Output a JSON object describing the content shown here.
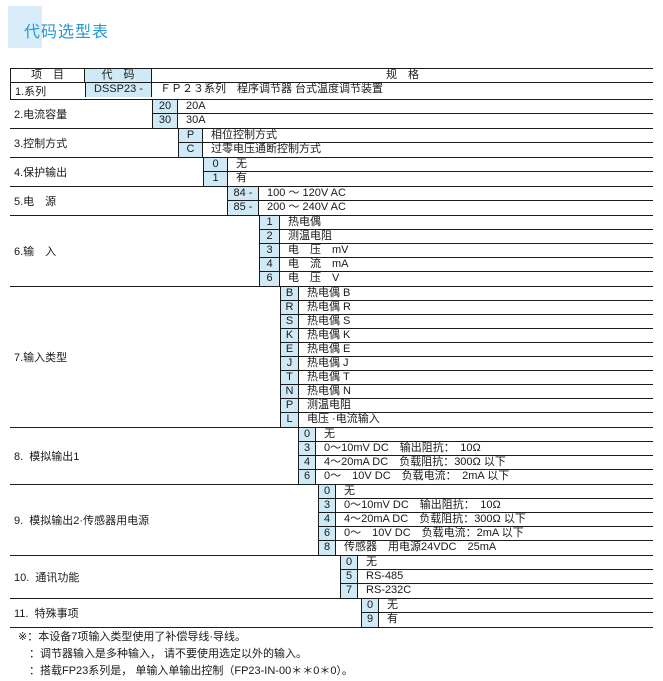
{
  "page_title": "代码选型表",
  "colors": {
    "accent_blue": "#2299d4",
    "title_highlight_bg": "#d8edf9",
    "code_cell_bg": "#cfe9f6",
    "border": "#1a1a1a"
  },
  "table": {
    "header": {
      "item": "项　目",
      "code": "代　码",
      "spec": "规　格"
    },
    "groups": [
      {
        "item": "1.系列",
        "options": [
          {
            "code": "DSSP23 -",
            "spec": "ＦＰ２３系列　程序调节器 台式温度调节装置"
          }
        ]
      },
      {
        "item": "2.电流容量",
        "options": [
          {
            "code": "20",
            "spec": "20A"
          },
          {
            "code": "30",
            "spec": "30A"
          }
        ]
      },
      {
        "item": "3.控制方式",
        "options": [
          {
            "code": "P",
            "spec": "相位控制方式"
          },
          {
            "code": "C",
            "spec": "过零电压通断控制方式"
          }
        ]
      },
      {
        "item": "4.保护输出",
        "options": [
          {
            "code": "0",
            "spec": "无"
          },
          {
            "code": "1",
            "spec": "有"
          }
        ]
      },
      {
        "item": "5.电　源",
        "options": [
          {
            "code": "84 -",
            "spec": "100 ～ 120V AC"
          },
          {
            "code": "85 -",
            "spec": "200 ～ 240V AC"
          }
        ]
      },
      {
        "item": "6.输　入",
        "options": [
          {
            "code": "1",
            "spec": "热电偶"
          },
          {
            "code": "2",
            "spec": "测温电阻"
          },
          {
            "code": "3",
            "spec": "电　压　mV"
          },
          {
            "code": "4",
            "spec": "电　流　mA"
          },
          {
            "code": "6",
            "spec": "电　压　V"
          }
        ]
      },
      {
        "item": "7.输入类型",
        "options": [
          {
            "code": "B",
            "spec": "热电偶 B"
          },
          {
            "code": "R",
            "spec": "热电偶 R"
          },
          {
            "code": "S",
            "spec": "热电偶 S"
          },
          {
            "code": "K",
            "spec": "热电偶 K"
          },
          {
            "code": "E",
            "spec": "热电偶 E"
          },
          {
            "code": "J",
            "spec": "热电偶 J"
          },
          {
            "code": "T",
            "spec": "热电偶 T"
          },
          {
            "code": "N",
            "spec": "热电偶 N"
          },
          {
            "code": "P",
            "spec": "测温电阻"
          },
          {
            "code": "L",
            "spec": "电压 ·电流输入"
          }
        ]
      },
      {
        "item": "8.  模拟输出1",
        "options": [
          {
            "code": "0",
            "spec": "无"
          },
          {
            "code": "3",
            "spec": "0～10mV DC　输出阻抗：　10Ω"
          },
          {
            "code": "4",
            "spec": "4～20mA DC　负载阻抗：300Ω 以下"
          },
          {
            "code": "6",
            "spec": "0～　10V DC　负载电流：　2mA 以下"
          }
        ]
      },
      {
        "item": "9.  模拟输出2·传感器用电源",
        "options": [
          {
            "code": "0",
            "spec": "无"
          },
          {
            "code": "3",
            "spec": "0～10mV DC　输出阻抗：　10Ω"
          },
          {
            "code": "4",
            "spec": "4～20mA DC　负载阻抗：300Ω 以下"
          },
          {
            "code": "6",
            "spec": "0～　10V DC　负载电流：2mA 以下"
          },
          {
            "code": "8",
            "spec": "传感器　用电源24VDC　25mA"
          }
        ]
      },
      {
        "item": "10.  通讯功能",
        "options": [
          {
            "code": "0",
            "spec": "无"
          },
          {
            "code": "5",
            "spec": "RS-485"
          },
          {
            "code": "7",
            "spec": "RS-232C"
          }
        ]
      },
      {
        "item": "11.  特殊事项",
        "options": [
          {
            "code": "0",
            "spec": "无"
          },
          {
            "code": "9",
            "spec": "有"
          }
        ]
      }
    ]
  },
  "footnotes": [
    "※：本设备7项输入类型使用了补偿导线·导线。",
    "：调节器输入是多种输入， 请不要使用选定以外的输入。",
    "：搭载FP23系列是， 单输入单输出控制（FP23-IN-00＊＊0＊0）。"
  ]
}
